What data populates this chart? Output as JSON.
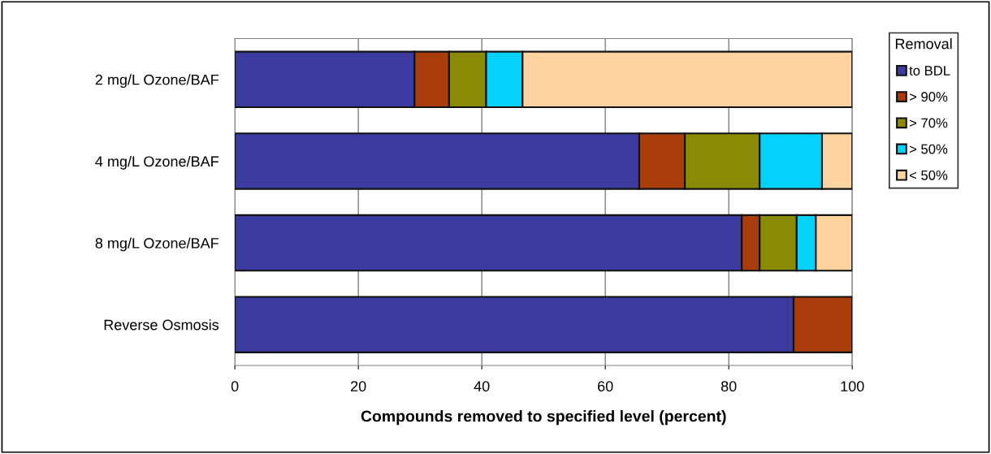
{
  "chart_data": {
    "type": "bar",
    "orientation": "horizontal",
    "stacked": true,
    "categories": [
      "2 mg/L Ozone/BAF",
      "4 mg/L Ozone/BAF",
      "8 mg/L Ozone/BAF",
      "Reverse Osmosis"
    ],
    "series": [
      {
        "name": "to BDL",
        "color": "#3b3ba0",
        "values": [
          29.1,
          65.5,
          82.1,
          90.5
        ]
      },
      {
        "name": "> 90%",
        "color": "#a83c0a",
        "values": [
          5.6,
          7.4,
          2.9,
          9.5
        ]
      },
      {
        "name": "> 70%",
        "color": "#8a8a05",
        "values": [
          6.0,
          12.1,
          6.0,
          null
        ]
      },
      {
        "name": "> 50%",
        "color": "#05d2fa",
        "values": [
          5.9,
          10.1,
          3.1,
          null
        ]
      },
      {
        "name": "< 50%",
        "color": "#fdd4a0",
        "values": [
          53.4,
          4.9,
          5.9,
          null
        ]
      }
    ],
    "xlabel": "Compounds removed to specified level (percent)",
    "legend_title": "Removal",
    "legend": "right",
    "xlim": [
      0,
      100
    ],
    "xticks": [
      0,
      20,
      40,
      60,
      80,
      100
    ],
    "grid": "x"
  }
}
